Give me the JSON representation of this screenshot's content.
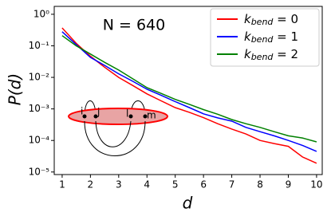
{
  "chart_data": {
    "type": "line",
    "xlabel": "d",
    "ylabel": "P(d)",
    "annotation": "N = 640",
    "inset_labels": [
      "i",
      "j",
      "l",
      "m"
    ],
    "x": [
      1,
      1.5,
      2,
      2.5,
      3,
      3.5,
      4,
      4.5,
      5,
      5.5,
      6,
      6.5,
      7,
      7.5,
      8,
      8.5,
      9,
      9.5,
      10
    ],
    "series": [
      {
        "name": "kbend = 0",
        "color": "#ff0000",
        "values": [
          0.37,
          0.12,
          0.047,
          0.021,
          0.01,
          0.0055,
          0.003,
          0.0018,
          0.0011,
          0.00078,
          0.00053,
          0.00034,
          0.00023,
          0.00016,
          0.0001,
          8e-05,
          6.5e-05,
          3e-05,
          1.9e-05
        ]
      },
      {
        "name": "kbend = 1",
        "color": "#0000ff",
        "values": [
          0.28,
          0.11,
          0.043,
          0.024,
          0.013,
          0.0075,
          0.0042,
          0.0027,
          0.0017,
          0.0011,
          0.0007,
          0.00052,
          0.00041,
          0.00026,
          0.00019,
          0.00014,
          0.0001,
          7e-05,
          4.5e-05
        ]
      },
      {
        "name": "kbend = 2",
        "color": "#008000",
        "values": [
          0.21,
          0.1,
          0.055,
          0.03,
          0.017,
          0.009,
          0.0047,
          0.0031,
          0.002,
          0.0014,
          0.00095,
          0.00068,
          0.00046,
          0.00034,
          0.00026,
          0.00019,
          0.00014,
          0.00012,
          9e-05
        ]
      }
    ],
    "xlim": [
      0.72,
      10.2
    ],
    "xticks": [
      1,
      2,
      3,
      4,
      5,
      6,
      7,
      8,
      9,
      10
    ],
    "ylim": [
      8.3e-06,
      1.78
    ],
    "log_y": true,
    "yticks": [
      {
        "value": 1e-05,
        "label": "10⁻⁵"
      },
      {
        "value": 0.0001,
        "label": "10⁻⁴"
      },
      {
        "value": 0.001,
        "label": "10⁻³"
      },
      {
        "value": 0.01,
        "label": "10⁻²"
      },
      {
        "value": 0.1,
        "label": "10⁻¹"
      },
      {
        "value": 1,
        "label": "10⁰"
      }
    ],
    "legend": "upper right"
  }
}
